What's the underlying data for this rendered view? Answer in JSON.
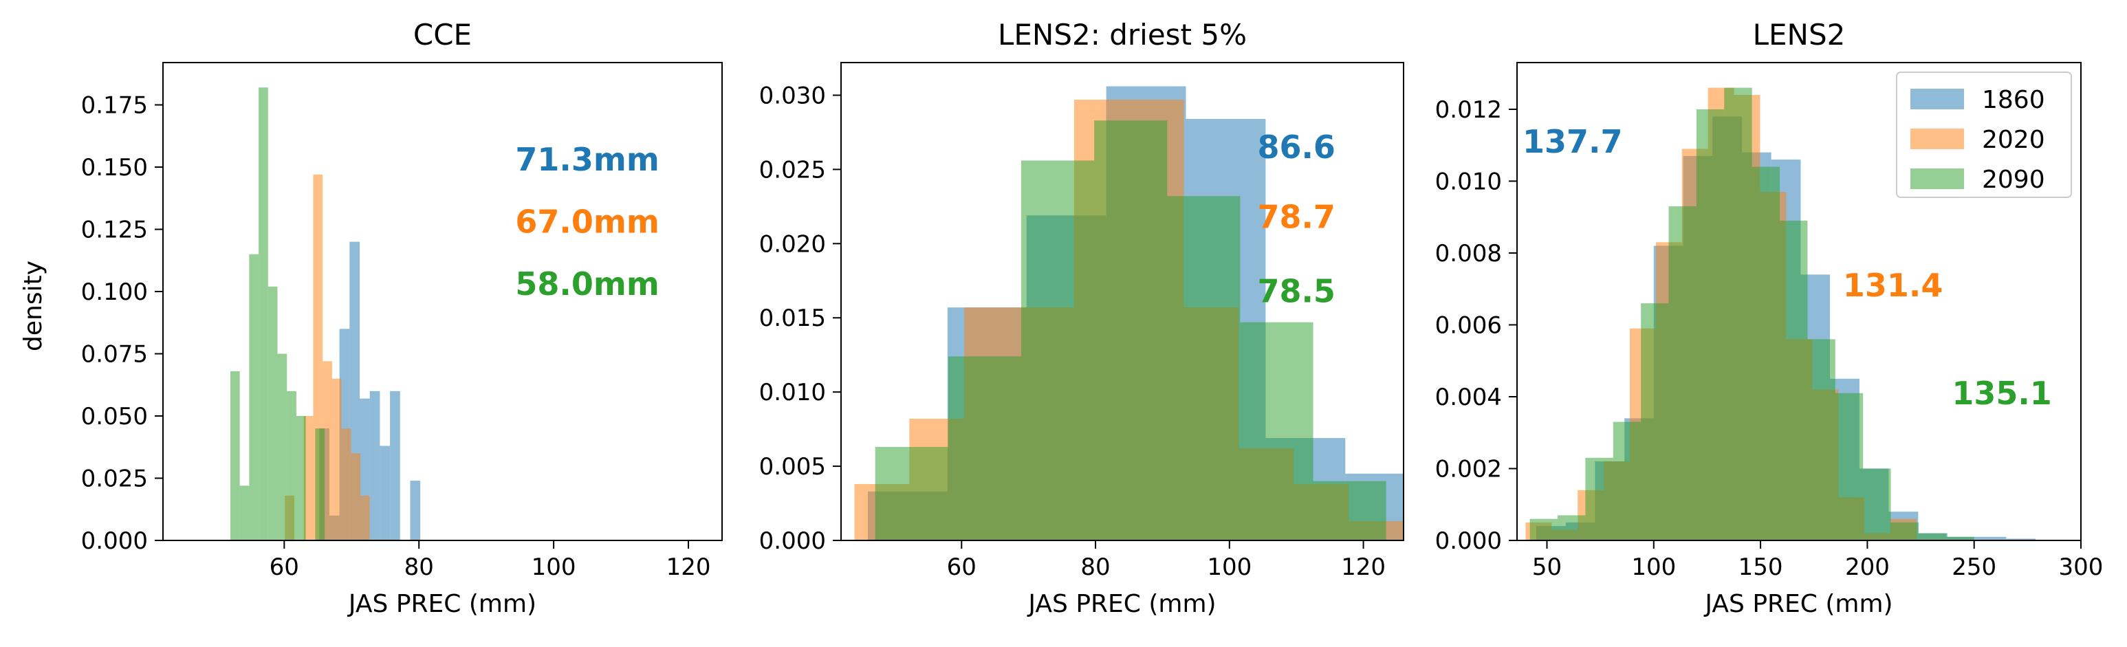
{
  "colors": {
    "1860": "#1f77b4",
    "2020": "#ff7f0e",
    "2090": "#2ca02c"
  },
  "series_names": [
    "1860",
    "2020",
    "2090"
  ],
  "ylabel": "density",
  "chart_data": [
    {
      "type": "histogram",
      "title": "CCE",
      "xlabel": "JAS PREC (mm)",
      "ylabel": "density",
      "xlim": [
        42,
        125
      ],
      "ylim": [
        0,
        0.192
      ],
      "xticks": [
        60,
        80,
        100,
        120
      ],
      "yticks": [
        0.0,
        0.025,
        0.05,
        0.075,
        0.1,
        0.125,
        0.15,
        0.175
      ],
      "ytick_labels": [
        "0.000",
        "0.025",
        "0.050",
        "0.075",
        "0.100",
        "0.125",
        "0.150",
        "0.175"
      ],
      "legend": null,
      "series": [
        {
          "name": "1860",
          "edges": [
            65.2,
            66.7,
            68.2,
            69.7,
            71.2,
            72.7,
            74.2,
            75.7,
            77.2,
            78.7,
            80.2
          ],
          "values": [
            0.045,
            0.01,
            0.085,
            0.12,
            0.057,
            0.06,
            0.038,
            0.06,
            0.0,
            0.024
          ]
        },
        {
          "name": "2020",
          "edges": [
            60.1,
            61.5,
            62.9,
            64.3,
            65.7,
            67.1,
            68.5,
            69.9,
            71.3,
            72.7,
            74.1
          ],
          "values": [
            0.018,
            0.0,
            0.05,
            0.147,
            0.072,
            0.065,
            0.045,
            0.035,
            0.018,
            0.0
          ]
        },
        {
          "name": "2090",
          "edges": [
            52.0,
            53.4,
            54.8,
            56.2,
            57.6,
            59.0,
            60.4,
            61.8,
            63.2,
            64.6,
            66.0
          ],
          "values": [
            0.068,
            0.022,
            0.115,
            0.182,
            0.102,
            0.075,
            0.06,
            0.05,
            0.0,
            0.045
          ]
        }
      ],
      "annotations": [
        {
          "text": "71.3mm",
          "series": "1860",
          "x": 105,
          "y": 0.153
        },
        {
          "text": "67.0mm",
          "series": "2020",
          "x": 105,
          "y": 0.128
        },
        {
          "text": "58.0mm",
          "series": "2090",
          "x": 105,
          "y": 0.103
        }
      ]
    },
    {
      "type": "histogram",
      "title": "LENS2: driest 5%",
      "xlabel": "JAS PREC (mm)",
      "ylabel": "",
      "xlim": [
        42,
        126
      ],
      "ylim": [
        0,
        0.0322
      ],
      "xticks": [
        60,
        80,
        100,
        120
      ],
      "yticks": [
        0.0,
        0.005,
        0.01,
        0.015,
        0.02,
        0.025,
        0.03
      ],
      "ytick_labels": [
        "0.000",
        "0.005",
        "0.010",
        "0.015",
        "0.020",
        "0.025",
        "0.030"
      ],
      "legend": null,
      "series": [
        {
          "name": "1860",
          "edges": [
            46.0,
            57.9,
            69.7,
            81.6,
            93.5,
            105.4,
            117.3,
            129.2
          ],
          "values": [
            0.0033,
            0.0157,
            0.0219,
            0.0306,
            0.0284,
            0.0069,
            0.0045
          ]
        },
        {
          "name": "2020",
          "edges": [
            44.0,
            52.2,
            60.4,
            68.6,
            76.8,
            85.0,
            93.2,
            101.4,
            109.6,
            117.8,
            126.0
          ],
          "values": [
            0.0038,
            0.0082,
            0.0157,
            0.0157,
            0.0297,
            0.0297,
            0.0157,
            0.0062,
            0.0038,
            0.0013
          ]
        },
        {
          "name": "2090",
          "edges": [
            47.1,
            58.0,
            68.9,
            79.8,
            90.7,
            101.6,
            112.5,
            123.4
          ],
          "values": [
            0.0063,
            0.0124,
            0.0256,
            0.0283,
            0.0232,
            0.0147,
            0.004
          ]
        }
      ],
      "annotations": [
        {
          "text": "86.6",
          "series": "1860",
          "x": 110,
          "y": 0.0265
        },
        {
          "text": "78.7",
          "series": "2020",
          "x": 110,
          "y": 0.0218
        },
        {
          "text": "78.5",
          "series": "2090",
          "x": 110,
          "y": 0.0168
        }
      ]
    },
    {
      "type": "histogram",
      "title": "LENS2",
      "xlabel": "JAS PREC (mm)",
      "ylabel": "",
      "xlim": [
        36,
        300
      ],
      "ylim": [
        0,
        0.0133
      ],
      "xticks": [
        50,
        100,
        150,
        200,
        250,
        300
      ],
      "yticks": [
        0.0,
        0.002,
        0.004,
        0.006,
        0.008,
        0.01,
        0.012
      ],
      "ytick_labels": [
        "0.000",
        "0.002",
        "0.004",
        "0.006",
        "0.008",
        "0.010",
        "0.012"
      ],
      "legend": {
        "entries": [
          "1860",
          "2020",
          "2090"
        ],
        "placement": "upper right"
      },
      "series": [
        {
          "name": "1860",
          "edges": [
            45.0,
            58.8,
            72.5,
            86.3,
            100.0,
            113.8,
            127.5,
            141.3,
            155.0,
            168.8,
            182.5,
            196.3,
            210.0,
            223.8,
            237.5,
            251.3,
            265.0,
            278.8,
            292.5
          ],
          "values": [
            0.0004,
            0.0005,
            0.0022,
            0.0034,
            0.0082,
            0.0107,
            0.0118,
            0.0108,
            0.0106,
            0.0074,
            0.0045,
            0.002,
            0.0008,
            0.0002,
            0.0001,
            0.0001,
            5e-05,
            2e-05
          ]
        },
        {
          "name": "2020",
          "edges": [
            40.0,
            52.2,
            64.4,
            76.6,
            88.8,
            101.0,
            113.2,
            125.4,
            137.6,
            149.8,
            162.0,
            174.2,
            186.4,
            198.6,
            210.8,
            223.0
          ],
          "values": [
            0.0005,
            0.0003,
            0.0014,
            0.0022,
            0.0059,
            0.0083,
            0.0109,
            0.0126,
            0.0124,
            0.0097,
            0.0056,
            0.0042,
            0.0012,
            0.0002,
            0.0006
          ]
        },
        {
          "name": "2090",
          "edges": [
            42.0,
            55.0,
            68.0,
            81.0,
            94.0,
            107.0,
            120.0,
            133.0,
            146.0,
            159.0,
            172.0,
            185.0,
            198.0,
            211.0,
            224.0,
            237.0,
            250.0
          ],
          "values": [
            0.0006,
            0.0007,
            0.0023,
            0.0033,
            0.0066,
            0.0093,
            0.012,
            0.0126,
            0.0104,
            0.0089,
            0.0056,
            0.0041,
            0.002,
            0.0005,
            0.0002,
            0.0001
          ]
        }
      ],
      "annotations": [
        {
          "text": "137.7",
          "series": "1860",
          "x": 62,
          "y": 0.0111
        },
        {
          "text": "131.4",
          "series": "2020",
          "x": 212,
          "y": 0.0071
        },
        {
          "text": "135.1",
          "series": "2090",
          "x": 263,
          "y": 0.0041
        }
      ]
    }
  ]
}
